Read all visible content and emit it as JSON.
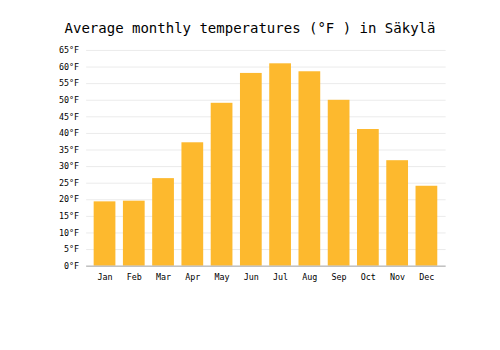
{
  "chart_data": {
    "type": "bar",
    "title": "Average monthly temperatures (°F ) in Säkylä",
    "categories": [
      "Jan",
      "Feb",
      "Mar",
      "Apr",
      "May",
      "Jun",
      "Jul",
      "Aug",
      "Sep",
      "Oct",
      "Nov",
      "Dec"
    ],
    "values": [
      19.4,
      19.6,
      26.4,
      37.2,
      49.1,
      58.1,
      61.0,
      58.6,
      50.0,
      41.2,
      31.8,
      24.1
    ],
    "color": "#FDB92E",
    "ylim": [
      0,
      65
    ],
    "yticks": [
      {
        "value": 0,
        "label": "0°F"
      },
      {
        "value": 5,
        "label": "5°F"
      },
      {
        "value": 10,
        "label": "10°F"
      },
      {
        "value": 15,
        "label": "15°F"
      },
      {
        "value": 20,
        "label": "20°F"
      },
      {
        "value": 25,
        "label": "25°F"
      },
      {
        "value": 30,
        "label": "30°F"
      },
      {
        "value": 35,
        "label": "35°F"
      },
      {
        "value": 40,
        "label": "40°F"
      },
      {
        "value": 45,
        "label": "45°F"
      },
      {
        "value": 50,
        "label": "50°F"
      },
      {
        "value": 55,
        "label": "55°F"
      },
      {
        "value": 60,
        "label": "60°F"
      },
      {
        "value": 65,
        "label": "65°F"
      }
    ],
    "grid": true
  }
}
